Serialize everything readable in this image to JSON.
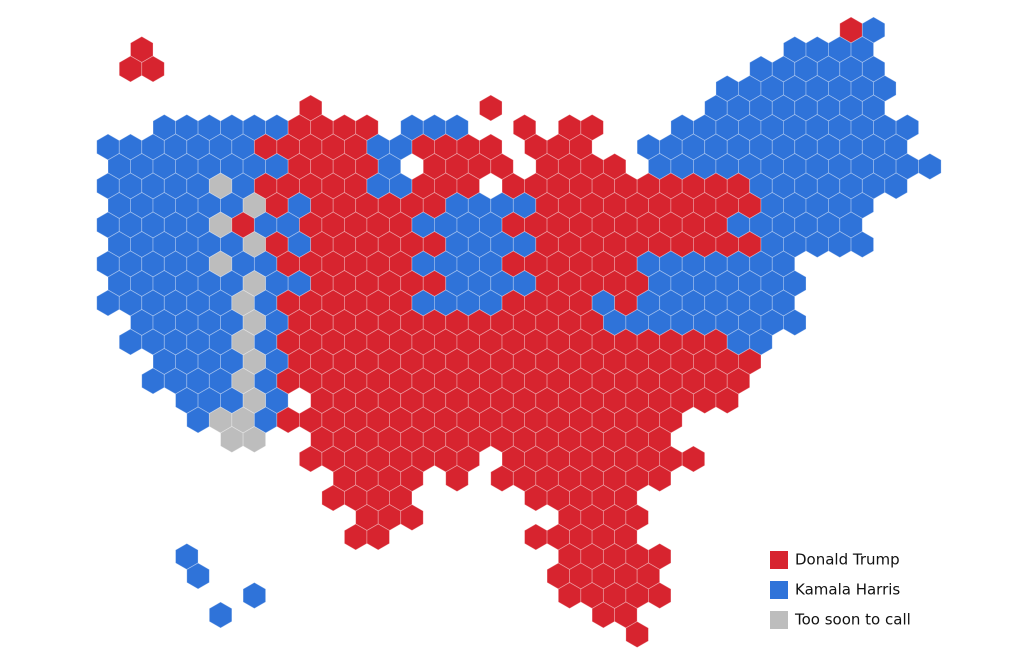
{
  "legend": {
    "items": [
      {
        "label": "Donald Trump",
        "color": "#d7242f"
      },
      {
        "label": "Kamala Harris",
        "color": "#2f73d9"
      },
      {
        "label": "Too soon to call",
        "color": "#bdbdbd"
      }
    ]
  }
}
